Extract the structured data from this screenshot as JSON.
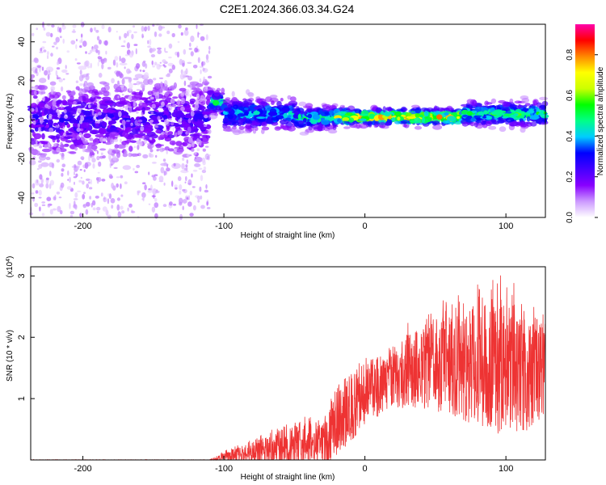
{
  "title": "C2E1.2024.366.03.34.G24",
  "chart_data": [
    {
      "type": "heatmap",
      "name": "spectrogram",
      "xlabel": "Height of straight line (km)",
      "ylabel": "Frequency (Hz)",
      "xlim": [
        -237,
        128
      ],
      "ylim": [
        -50,
        49
      ],
      "xticks": [
        -200,
        -100,
        0,
        100
      ],
      "yticks": [
        40,
        20,
        0,
        -20,
        -40
      ],
      "grid": false,
      "colorbar": {
        "label": "Normalized spectral amplitude",
        "range": [
          0,
          0.95
        ],
        "ticks": [
          0.0,
          0.2,
          0.4,
          0.6,
          0.8
        ],
        "colors": [
          "#ffffff",
          "#cc99ff",
          "#8800ff",
          "#4400ff",
          "#0000ff",
          "#00ccff",
          "#00ff88",
          "#00ff00",
          "#ccff00",
          "#ffff00",
          "#ff8800",
          "#ff0000",
          "#ff00aa"
        ]
      },
      "regions": [
        {
          "x": [
            -237,
            -110
          ],
          "center_hz": 0,
          "band_spread_hz": 22,
          "max_amplitude": 0.3,
          "noise_extent_hz": [
            -50,
            49
          ]
        },
        {
          "x": [
            -110,
            -100
          ],
          "center_hz": 9,
          "band_spread_hz": 6,
          "max_amplitude": 0.55
        },
        {
          "x": [
            -100,
            -50
          ],
          "center_hz": 3,
          "band_spread_hz": 8,
          "max_amplitude": 0.5
        },
        {
          "x": [
            -50,
            -20
          ],
          "center_hz": 1,
          "band_spread_hz": 6,
          "max_amplitude": 0.55
        },
        {
          "x": [
            -20,
            70
          ],
          "center_hz": 1.5,
          "band_spread_hz": 4,
          "max_amplitude": 0.85
        },
        {
          "x": [
            70,
            128
          ],
          "center_hz": 3,
          "band_spread_hz": 6,
          "max_amplitude": 0.6
        }
      ]
    },
    {
      "type": "line",
      "name": "snr",
      "xlabel": "Height of straight line (km)",
      "ylabel": "SNR (10 * v/v)",
      "y_multiplier": "(x10^4)",
      "xlim": [
        -237,
        128
      ],
      "ylim": [
        0,
        3.15
      ],
      "xticks": [
        -200,
        -100,
        0,
        100
      ],
      "yticks": [
        1,
        2,
        3
      ],
      "grid": false,
      "color": "#ee3333",
      "envelope": {
        "x": [
          -237,
          -110,
          -100,
          -80,
          -60,
          -45,
          -30,
          -25,
          -20,
          -10,
          0,
          20,
          30,
          50,
          70,
          80,
          95,
          105,
          115,
          128
        ],
        "mean": [
          0.0,
          0.0,
          0.05,
          0.12,
          0.22,
          0.25,
          0.3,
          0.4,
          0.65,
          0.85,
          1.05,
          1.35,
          1.45,
          1.55,
          1.55,
          1.5,
          1.55,
          1.5,
          1.45,
          1.5
        ],
        "peak": [
          0.005,
          0.005,
          0.15,
          0.35,
          0.6,
          0.7,
          0.75,
          1.05,
          1.4,
          1.6,
          1.75,
          2.05,
          2.25,
          2.55,
          2.75,
          2.9,
          3.05,
          2.9,
          2.75,
          2.5
        ]
      }
    }
  ]
}
